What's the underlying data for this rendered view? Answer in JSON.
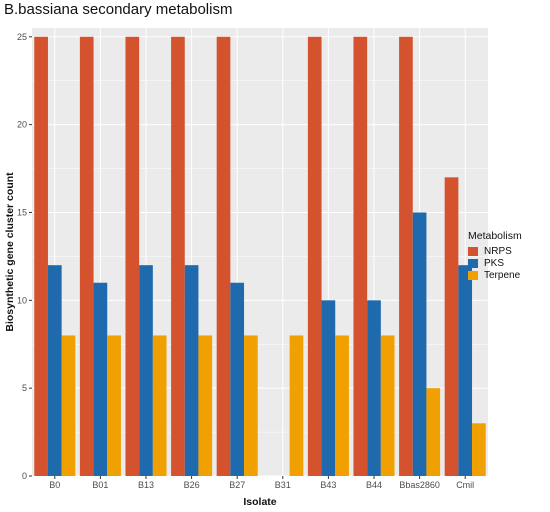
{
  "chart_data": {
    "type": "bar",
    "title": "B.bassiana secondary metabolism",
    "xlabel": "Isolate",
    "ylabel": "Biosynthetic gene cluster count",
    "categories": [
      "B0",
      "B01",
      "B13",
      "B26",
      "B27",
      "B31",
      "B43",
      "B44",
      "Bbas2860",
      "Cmil"
    ],
    "series": [
      {
        "name": "NRPS",
        "color": "#d4532e",
        "values": [
          25,
          25,
          25,
          25,
          25,
          0,
          25,
          25,
          25,
          17
        ]
      },
      {
        "name": "PKS",
        "color": "#1f6aad",
        "values": [
          12,
          11,
          12,
          12,
          11,
          0,
          10,
          10,
          15,
          12
        ]
      },
      {
        "name": "Terpene",
        "color": "#f0a000",
        "values": [
          8,
          8,
          8,
          8,
          8,
          8,
          8,
          8,
          5,
          3
        ]
      }
    ],
    "ylim": [
      0,
      25.5
    ],
    "yticks": [
      0,
      5,
      10,
      15,
      20,
      25
    ],
    "grid": true,
    "legend": {
      "title": "Metabolism",
      "placement": "right"
    },
    "panel_background": "#ebebeb"
  }
}
